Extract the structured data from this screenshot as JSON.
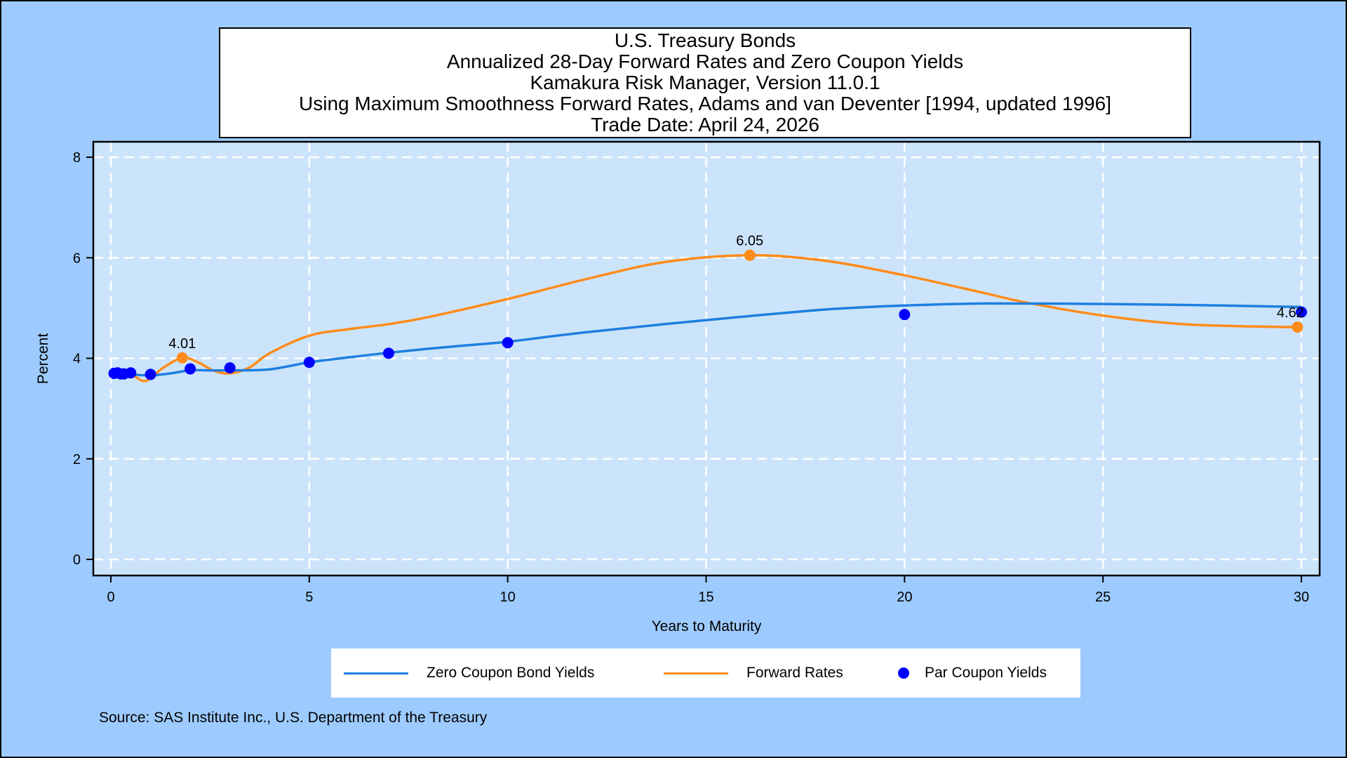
{
  "titles": [
    "U.S. Treasury Bonds",
    "Annualized 28-Day Forward Rates and Zero Coupon Yields",
    "Kamakura Risk Manager, Version 11.0.1",
    "Using Maximum Smoothness Forward Rates, Adams and van Deventer [1994, updated 1996]",
    "Trade Date: April 24, 2026"
  ],
  "source": "Source: SAS Institute Inc., U.S. Department of the Treasury",
  "colors": {
    "background": "#9ecbff",
    "plot_area": "#cce4fb",
    "zero_curve": "#1f7fe0",
    "forward_curve": "#ff8c1a",
    "par_points": "#0000ff"
  },
  "chart_data": {
    "type": "line",
    "xlabel": "Years to Maturity",
    "ylabel": "Percent",
    "xlim": [
      0,
      30
    ],
    "ylim": [
      0,
      8
    ],
    "x_ticks": [
      0,
      5,
      10,
      15,
      20,
      25,
      30
    ],
    "y_ticks": [
      0,
      2,
      4,
      6,
      8
    ],
    "grid": true,
    "legend_position": "bottom",
    "series": [
      {
        "name": "Zero Coupon Bond Yields",
        "type": "line",
        "x": [
          0,
          0.5,
          1,
          1.5,
          2,
          2.5,
          3,
          4,
          5,
          6,
          7,
          8,
          9,
          10,
          12,
          15,
          18,
          20,
          22,
          25,
          28,
          30
        ],
        "y": [
          3.72,
          3.68,
          3.66,
          3.7,
          3.76,
          3.76,
          3.76,
          3.78,
          3.92,
          4.02,
          4.11,
          4.19,
          4.26,
          4.33,
          4.52,
          4.76,
          4.97,
          5.05,
          5.09,
          5.08,
          5.05,
          5.02
        ]
      },
      {
        "name": "Forward Rates",
        "type": "line",
        "x": [
          0,
          0.5,
          0.8,
          1,
          1.3,
          1.8,
          2.2,
          2.6,
          3,
          3.5,
          4,
          5,
          6,
          7,
          8,
          10,
          12,
          14,
          16.1,
          18,
          20,
          22,
          23,
          25,
          27,
          29,
          30
        ],
        "y": [
          3.72,
          3.68,
          3.55,
          3.6,
          3.8,
          4.01,
          3.92,
          3.75,
          3.7,
          3.82,
          4.1,
          4.45,
          4.58,
          4.68,
          4.82,
          5.18,
          5.58,
          5.92,
          6.05,
          5.94,
          5.65,
          5.3,
          5.12,
          4.85,
          4.68,
          4.63,
          4.62
        ]
      },
      {
        "name": "Par Coupon Yields",
        "type": "scatter",
        "x": [
          0.08,
          0.17,
          0.25,
          0.33,
          0.5,
          1,
          2,
          3,
          5,
          7,
          10,
          20,
          30
        ],
        "y": [
          3.7,
          3.71,
          3.69,
          3.69,
          3.71,
          3.68,
          3.79,
          3.81,
          3.92,
          4.1,
          4.31,
          4.87,
          4.92
        ]
      }
    ],
    "annotations": [
      {
        "x": 1.8,
        "y": 4.01,
        "label": "4.01"
      },
      {
        "x": 16.1,
        "y": 6.05,
        "label": "6.05"
      },
      {
        "x": 29.9,
        "y": 4.62,
        "label": "4.62"
      }
    ]
  }
}
